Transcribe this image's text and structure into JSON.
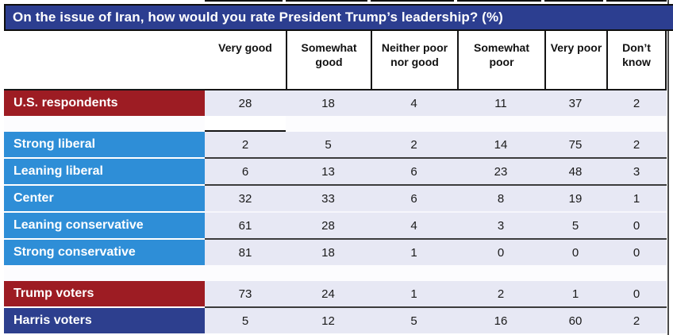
{
  "colors": {
    "titlebar": "#2c3e90",
    "red": "#9d1c23",
    "blue": "#2e8ed7",
    "navy": "#2d3f8e",
    "cell_bg": "#e7e8f4",
    "separator_dark": "#3c3c3c"
  },
  "header": {
    "labels": [
      "Very good",
      "Somewhat\ngood",
      "Neither poor\nnor good",
      "Somewhat\npoor",
      "Very poor",
      "Don’t\nknow"
    ]
  },
  "chart_data": {
    "type": "table",
    "title": "On the issue of Iran, how would you rate President Trump’s leadership? (%)",
    "columns": [
      "Very good",
      "Somewhat good",
      "Neither poor nor good",
      "Somewhat poor",
      "Very poor",
      "Don’t know"
    ],
    "unit": "percent",
    "groups": [
      {
        "rows": [
          {
            "label": "U.S. respondents",
            "color": "red",
            "values": [
              28,
              18,
              4,
              11,
              37,
              2
            ]
          }
        ]
      },
      {
        "rows": [
          {
            "label": "Strong liberal",
            "color": "blue",
            "values": [
              2,
              5,
              2,
              14,
              75,
              2
            ]
          },
          {
            "label": "Leaning liberal",
            "color": "blue",
            "values": [
              6,
              13,
              6,
              23,
              48,
              3
            ]
          },
          {
            "label": "Center",
            "color": "blue",
            "values": [
              32,
              33,
              6,
              8,
              19,
              1
            ]
          },
          {
            "label": "Leaning conservative",
            "color": "blue",
            "sep": "light",
            "values": [
              61,
              28,
              4,
              3,
              5,
              0
            ]
          },
          {
            "label": "Strong conservative",
            "color": "blue",
            "values": [
              81,
              18,
              1,
              0,
              0,
              0
            ]
          }
        ]
      },
      {
        "rows": [
          {
            "label": "Trump voters",
            "color": "red",
            "values": [
              73,
              24,
              1,
              2,
              1,
              0
            ]
          },
          {
            "label": "Harris voters",
            "color": "navy",
            "values": [
              5,
              12,
              5,
              16,
              60,
              2
            ]
          }
        ]
      }
    ]
  }
}
